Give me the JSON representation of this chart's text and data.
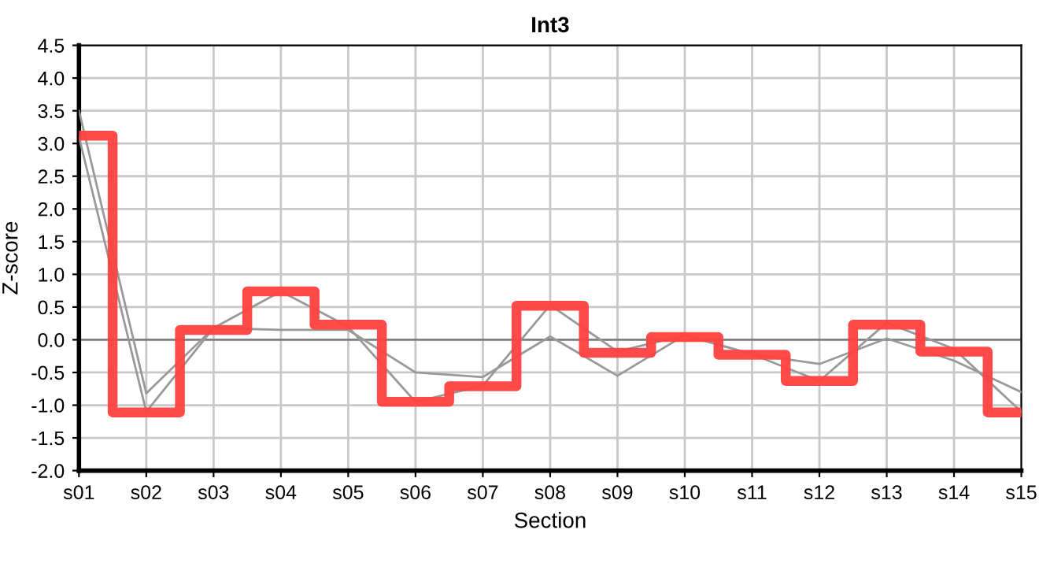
{
  "chart_data": {
    "type": "line",
    "title": "Int3",
    "xlabel": "Section",
    "ylabel": "Z-score",
    "categories": [
      "s01",
      "s02",
      "s03",
      "s04",
      "s05",
      "s06",
      "s07",
      "s08",
      "s09",
      "s10",
      "s11",
      "s12",
      "s13",
      "s14",
      "s15"
    ],
    "series": [
      {
        "color": "#999999",
        "values": [
          3.5,
          -0.82,
          0.18,
          0.15,
          0.15,
          -0.5,
          -0.57,
          0.05,
          -0.55,
          0.07,
          -0.22,
          -0.37,
          0.02,
          -0.32,
          -0.8
        ]
      },
      {
        "color": "#999999",
        "values": [
          3.1,
          -1.1,
          0.18,
          0.74,
          0.2,
          -0.95,
          -0.7,
          0.53,
          -0.18,
          0.07,
          -0.22,
          -0.63,
          0.26,
          -0.14,
          -1.1
        ]
      },
      {
        "type": "step",
        "color": "#ff4040",
        "values": [
          3.12,
          -1.11,
          0.15,
          0.74,
          0.23,
          -0.95,
          -0.71,
          0.52,
          -0.2,
          0.04,
          -0.23,
          -0.63,
          0.23,
          -0.18,
          -1.11
        ]
      }
    ],
    "ylim": [
      -2,
      4.5
    ],
    "yticks": [
      {
        "value": -2,
        "label": "-2.0"
      },
      {
        "value": -1.5,
        "label": "-1.5"
      },
      {
        "value": -1,
        "label": "-1.0"
      },
      {
        "value": -0.5,
        "label": "-0.5"
      },
      {
        "value": 0,
        "label": "0.0"
      },
      {
        "value": 0.5,
        "label": "0.5"
      },
      {
        "value": 1,
        "label": "1.0"
      },
      {
        "value": 1.5,
        "label": "1.5"
      },
      {
        "value": 2,
        "label": "2.0"
      },
      {
        "value": 2.5,
        "label": "2.5"
      },
      {
        "value": 3,
        "label": "3.0"
      },
      {
        "value": 3.5,
        "label": "3.5"
      },
      {
        "value": 4,
        "label": "4.0"
      },
      {
        "value": 4.5,
        "label": "4.5"
      }
    ],
    "ref_lines": [
      {
        "axis": "y",
        "value": 0,
        "color": "#808080"
      }
    ],
    "grid": true
  }
}
